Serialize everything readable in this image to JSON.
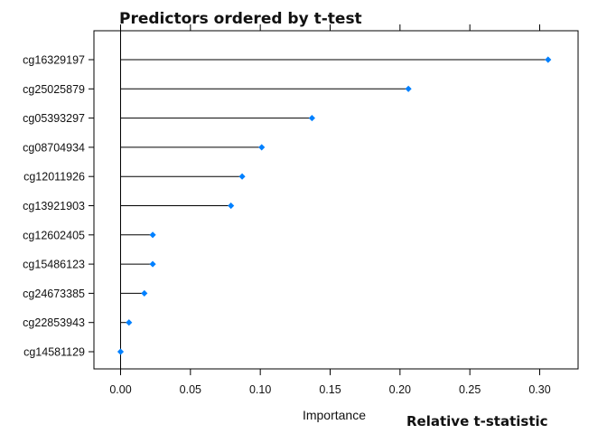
{
  "chart_data": {
    "type": "dot",
    "title": "Predictors ordered by t-test",
    "xlabel": "Importance",
    "annotation": "Relative t-statistic",
    "xlim": [
      -0.018,
      0.325
    ],
    "xticks": [
      0.0,
      0.05,
      0.1,
      0.15,
      0.2,
      0.25,
      0.3
    ],
    "xtick_labels": [
      "0.00",
      "0.05",
      "0.10",
      "0.15",
      "0.20",
      "0.25",
      "0.30"
    ],
    "categories": [
      "cg16329197",
      "cg25025879",
      "cg05393297",
      "cg08704934",
      "cg12011926",
      "cg13921903",
      "cg12602405",
      "cg15486123",
      "cg24673385",
      "cg22853943",
      "cg14581129"
    ],
    "values": [
      0.306,
      0.206,
      0.137,
      0.101,
      0.087,
      0.079,
      0.023,
      0.023,
      0.017,
      0.006,
      0.0
    ],
    "point_color": "#0080ff",
    "line_color": "#000000"
  }
}
